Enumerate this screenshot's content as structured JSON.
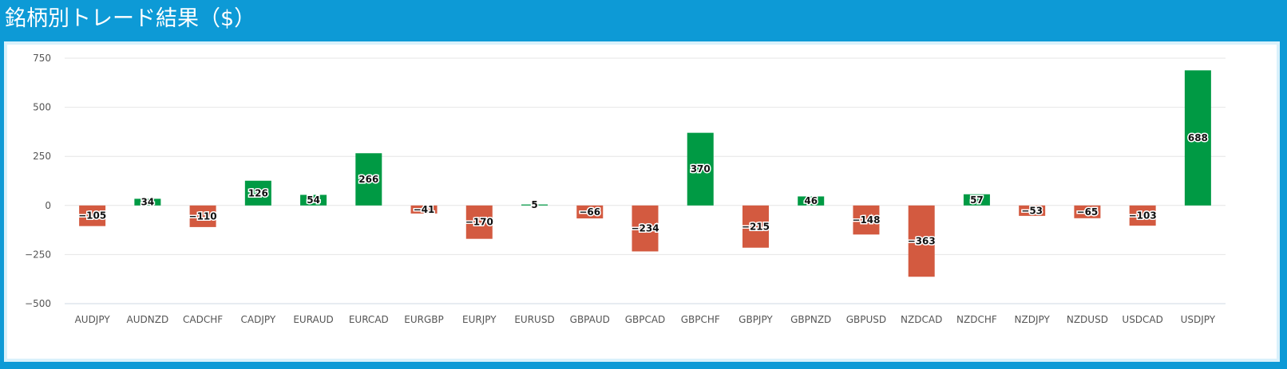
{
  "header": {
    "title": "銘柄別トレード結果（$）"
  },
  "colors": {
    "positive": "#009a44",
    "negative": "#d35a40",
    "header": "#0d9ad6",
    "grid": "#e6e6e6"
  },
  "chart_data": {
    "type": "bar",
    "title": "",
    "xlabel": "",
    "ylabel": "",
    "ylim": [
      -500,
      750
    ],
    "yticks": [
      750,
      500,
      250,
      0,
      -250,
      -500
    ],
    "ytick_labels": [
      "750",
      "500",
      "250",
      "0",
      "−250",
      "−500"
    ],
    "grid": true,
    "categories": [
      "AUDJPY",
      "AUDNZD",
      "CADCHF",
      "CADJPY",
      "EURAUD",
      "EURCAD",
      "EURGBP",
      "EURJPY",
      "EURUSD",
      "GBPAUD",
      "GBPCAD",
      "GBPCHF",
      "GBPJPY",
      "GBPNZD",
      "GBPUSD",
      "NZDCAD",
      "NZDCHF",
      "NZDJPY",
      "NZDUSD",
      "USDCAD",
      "USDJPY"
    ],
    "values": [
      -105,
      34,
      -110,
      126,
      54,
      266,
      -41,
      -170,
      5,
      -66,
      -234,
      370,
      -215,
      46,
      -148,
      -363,
      57,
      -53,
      -65,
      -103,
      688
    ],
    "value_labels": [
      "−105",
      "34",
      "−110",
      "126",
      "54",
      "266",
      "−41",
      "−170",
      "5",
      "−66",
      "−234",
      "370",
      "−215",
      "46",
      "−148",
      "−363",
      "57",
      "−53",
      "−65",
      "−103",
      "688"
    ]
  }
}
